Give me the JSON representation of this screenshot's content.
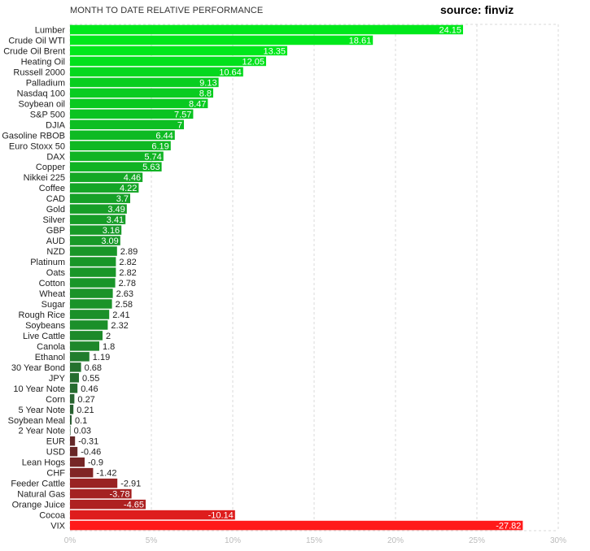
{
  "header": {
    "title": "MONTH TO DATE RELATIVE PERFORMANCE",
    "source": "source: finviz"
  },
  "chart_data": {
    "type": "bar",
    "orientation": "horizontal",
    "title": "MONTH TO DATE RELATIVE PERFORMANCE",
    "xlim": [
      0,
      30
    ],
    "xticks": [
      "0%",
      "5%",
      "10%",
      "15%",
      "20%",
      "25%",
      "30%"
    ],
    "grid": true,
    "categories": [
      "Lumber",
      "Crude Oil WTI",
      "Crude Oil Brent",
      "Heating Oil",
      "Russell 2000",
      "Palladium",
      "Nasdaq 100",
      "Soybean oil",
      "S&P 500",
      "DJIA",
      "Gasoline RBOB",
      "Euro Stoxx 50",
      "DAX",
      "Copper",
      "Nikkei 225",
      "Coffee",
      "CAD",
      "Gold",
      "Silver",
      "GBP",
      "AUD",
      "NZD",
      "Platinum",
      "Oats",
      "Cotton",
      "Wheat",
      "Sugar",
      "Rough Rice",
      "Soybeans",
      "Live Cattle",
      "Canola",
      "Ethanol",
      "30 Year Bond",
      "JPY",
      "10 Year Note",
      "Corn",
      "5 Year Note",
      "Soybean Meal",
      "2 Year Note",
      "EUR",
      "USD",
      "Lean Hogs",
      "CHF",
      "Feeder Cattle",
      "Natural Gas",
      "Orange Juice",
      "Cocoa",
      "VIX"
    ],
    "values": [
      24.15,
      18.61,
      13.35,
      12.05,
      10.64,
      9.13,
      8.8,
      8.47,
      7.57,
      7,
      6.44,
      6.19,
      5.74,
      5.63,
      4.46,
      4.22,
      3.7,
      3.49,
      3.41,
      3.16,
      3.09,
      2.89,
      2.82,
      2.82,
      2.78,
      2.63,
      2.58,
      2.41,
      2.32,
      2,
      1.8,
      1.19,
      0.68,
      0.55,
      0.46,
      0.27,
      0.21,
      0.1,
      0.03,
      -0.31,
      -0.46,
      -0.9,
      -1.42,
      -2.91,
      -3.78,
      -4.65,
      -10.14,
      -27.82
    ],
    "value_labels": [
      "24.15",
      "18.61",
      "13.35",
      "12.05",
      "10.64",
      "9.13",
      "8.8",
      "8.47",
      "7.57",
      "7",
      "6.44",
      "6.19",
      "5.74",
      "5.63",
      "4.46",
      "4.22",
      "3.7",
      "3.49",
      "3.41",
      "3.16",
      "3.09",
      "2.89",
      "2.82",
      "2.82",
      "2.78",
      "2.63",
      "2.58",
      "2.41",
      "2.32",
      "2",
      "1.8",
      "1.19",
      "0.68",
      "0.55",
      "0.46",
      "0.27",
      "0.21",
      "0.1",
      "0.03",
      "-0.31",
      "-0.46",
      "-0.9",
      "-1.42",
      "-2.91",
      "-3.78",
      "-4.65",
      "-10.14",
      "-27.82"
    ],
    "colors": {
      "positive": "#00e81b",
      "positive_dark": "#2f4f34",
      "negative": "#ff1a1a",
      "negative_dark": "#4a2a2a"
    }
  }
}
